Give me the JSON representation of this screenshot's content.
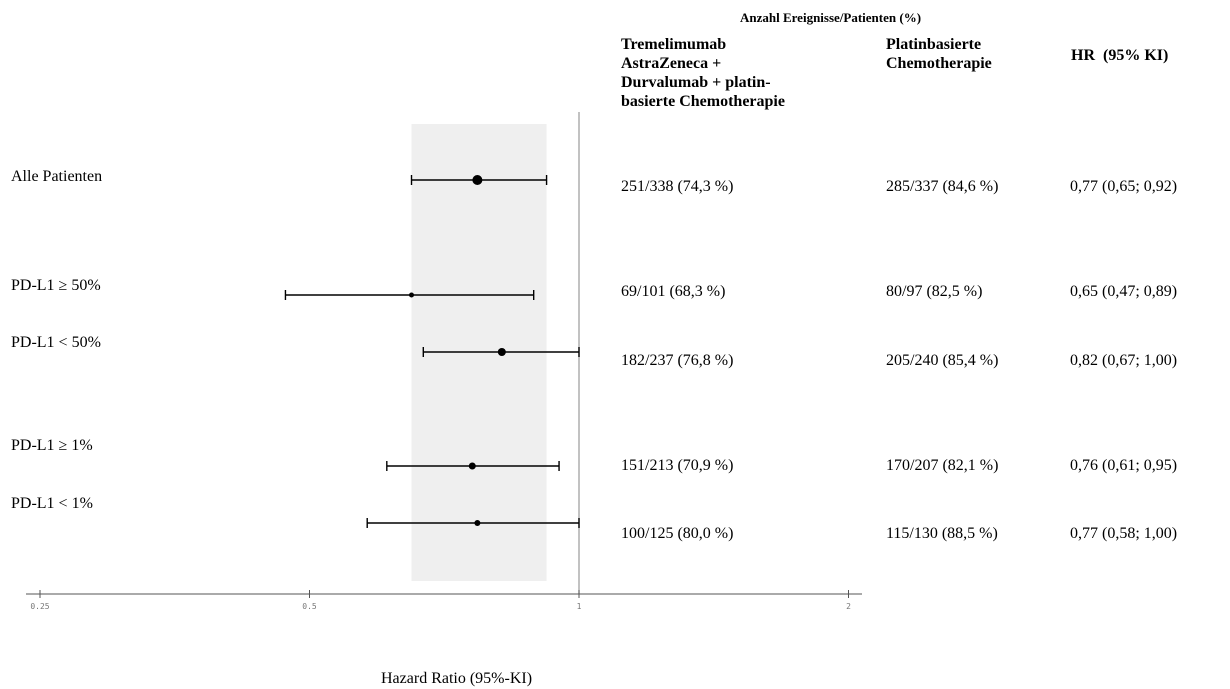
{
  "header": {
    "supra": "Anzahl Ereignisse/Patienten (%)",
    "col_treatment": [
      "Tremelimumab",
      "AstraZeneca +",
      "Durvalumab + platin-",
      "basierte Chemotherapie"
    ],
    "col_control": [
      "Platinbasierte",
      "Chemotherapie"
    ],
    "col_hr": "HR  (95% KI)"
  },
  "rows": [
    {
      "label": "Alle Patienten",
      "treatment": "251/338 (74,3 %)",
      "control": "285/337 (84,6 %)",
      "hr_text": "0,77 (0,65; 0,92)"
    },
    {
      "label": "PD-L1 ≥ 50%",
      "treatment": "69/101 (68,3 %)",
      "control": "80/97 (82,5 %)",
      "hr_text": "0,65 (0,47; 0,89)"
    },
    {
      "label": "PD-L1 < 50%",
      "treatment": "182/237 (76,8 %)",
      "control": "205/240 (85,4 %)",
      "hr_text": "0,82 (0,67; 1,00)"
    },
    {
      "label": "PD-L1 ≥ 1%",
      "treatment": "151/213 (70,9 %)",
      "control": "170/207 (82,1 %)",
      "hr_text": "0,76 (0,61; 0,95)"
    },
    {
      "label": "PD-L1 < 1%",
      "treatment": "100/125 (80,0 %)",
      "control": "115/130 (88,5 %)",
      "hr_text": "0,77 (0,58; 1,00)"
    }
  ],
  "chart_data": {
    "type": "forest",
    "x_scale": "log",
    "xlim": [
      0.25,
      2.2
    ],
    "xticks": [
      {
        "value": 0.25,
        "label": "0.25"
      },
      {
        "value": 0.5,
        "label": "0.5"
      },
      {
        "value": 1,
        "label": "1"
      },
      {
        "value": 2,
        "label": "2"
      }
    ],
    "xlabel": "Hazard Ratio (95%-KI)",
    "reference_line": 1,
    "overall_ci_band": [
      0.65,
      0.92
    ],
    "estimates": [
      {
        "label": "Alle Patienten",
        "hr": 0.77,
        "lo": 0.65,
        "hi": 0.92
      },
      {
        "label": "PD-L1 ≥ 50%",
        "hr": 0.65,
        "lo": 0.47,
        "hi": 0.89
      },
      {
        "label": "PD-L1 < 50%",
        "hr": 0.82,
        "lo": 0.67,
        "hi": 1.0
      },
      {
        "label": "PD-L1 ≥ 1%",
        "hr": 0.76,
        "lo": 0.61,
        "hi": 0.95
      },
      {
        "label": "PD-L1 < 1%",
        "hr": 0.77,
        "lo": 0.58,
        "hi": 1.0
      }
    ],
    "colors": {
      "band": "#efefef",
      "ref_line": "#999999",
      "marks": "#000000"
    }
  }
}
